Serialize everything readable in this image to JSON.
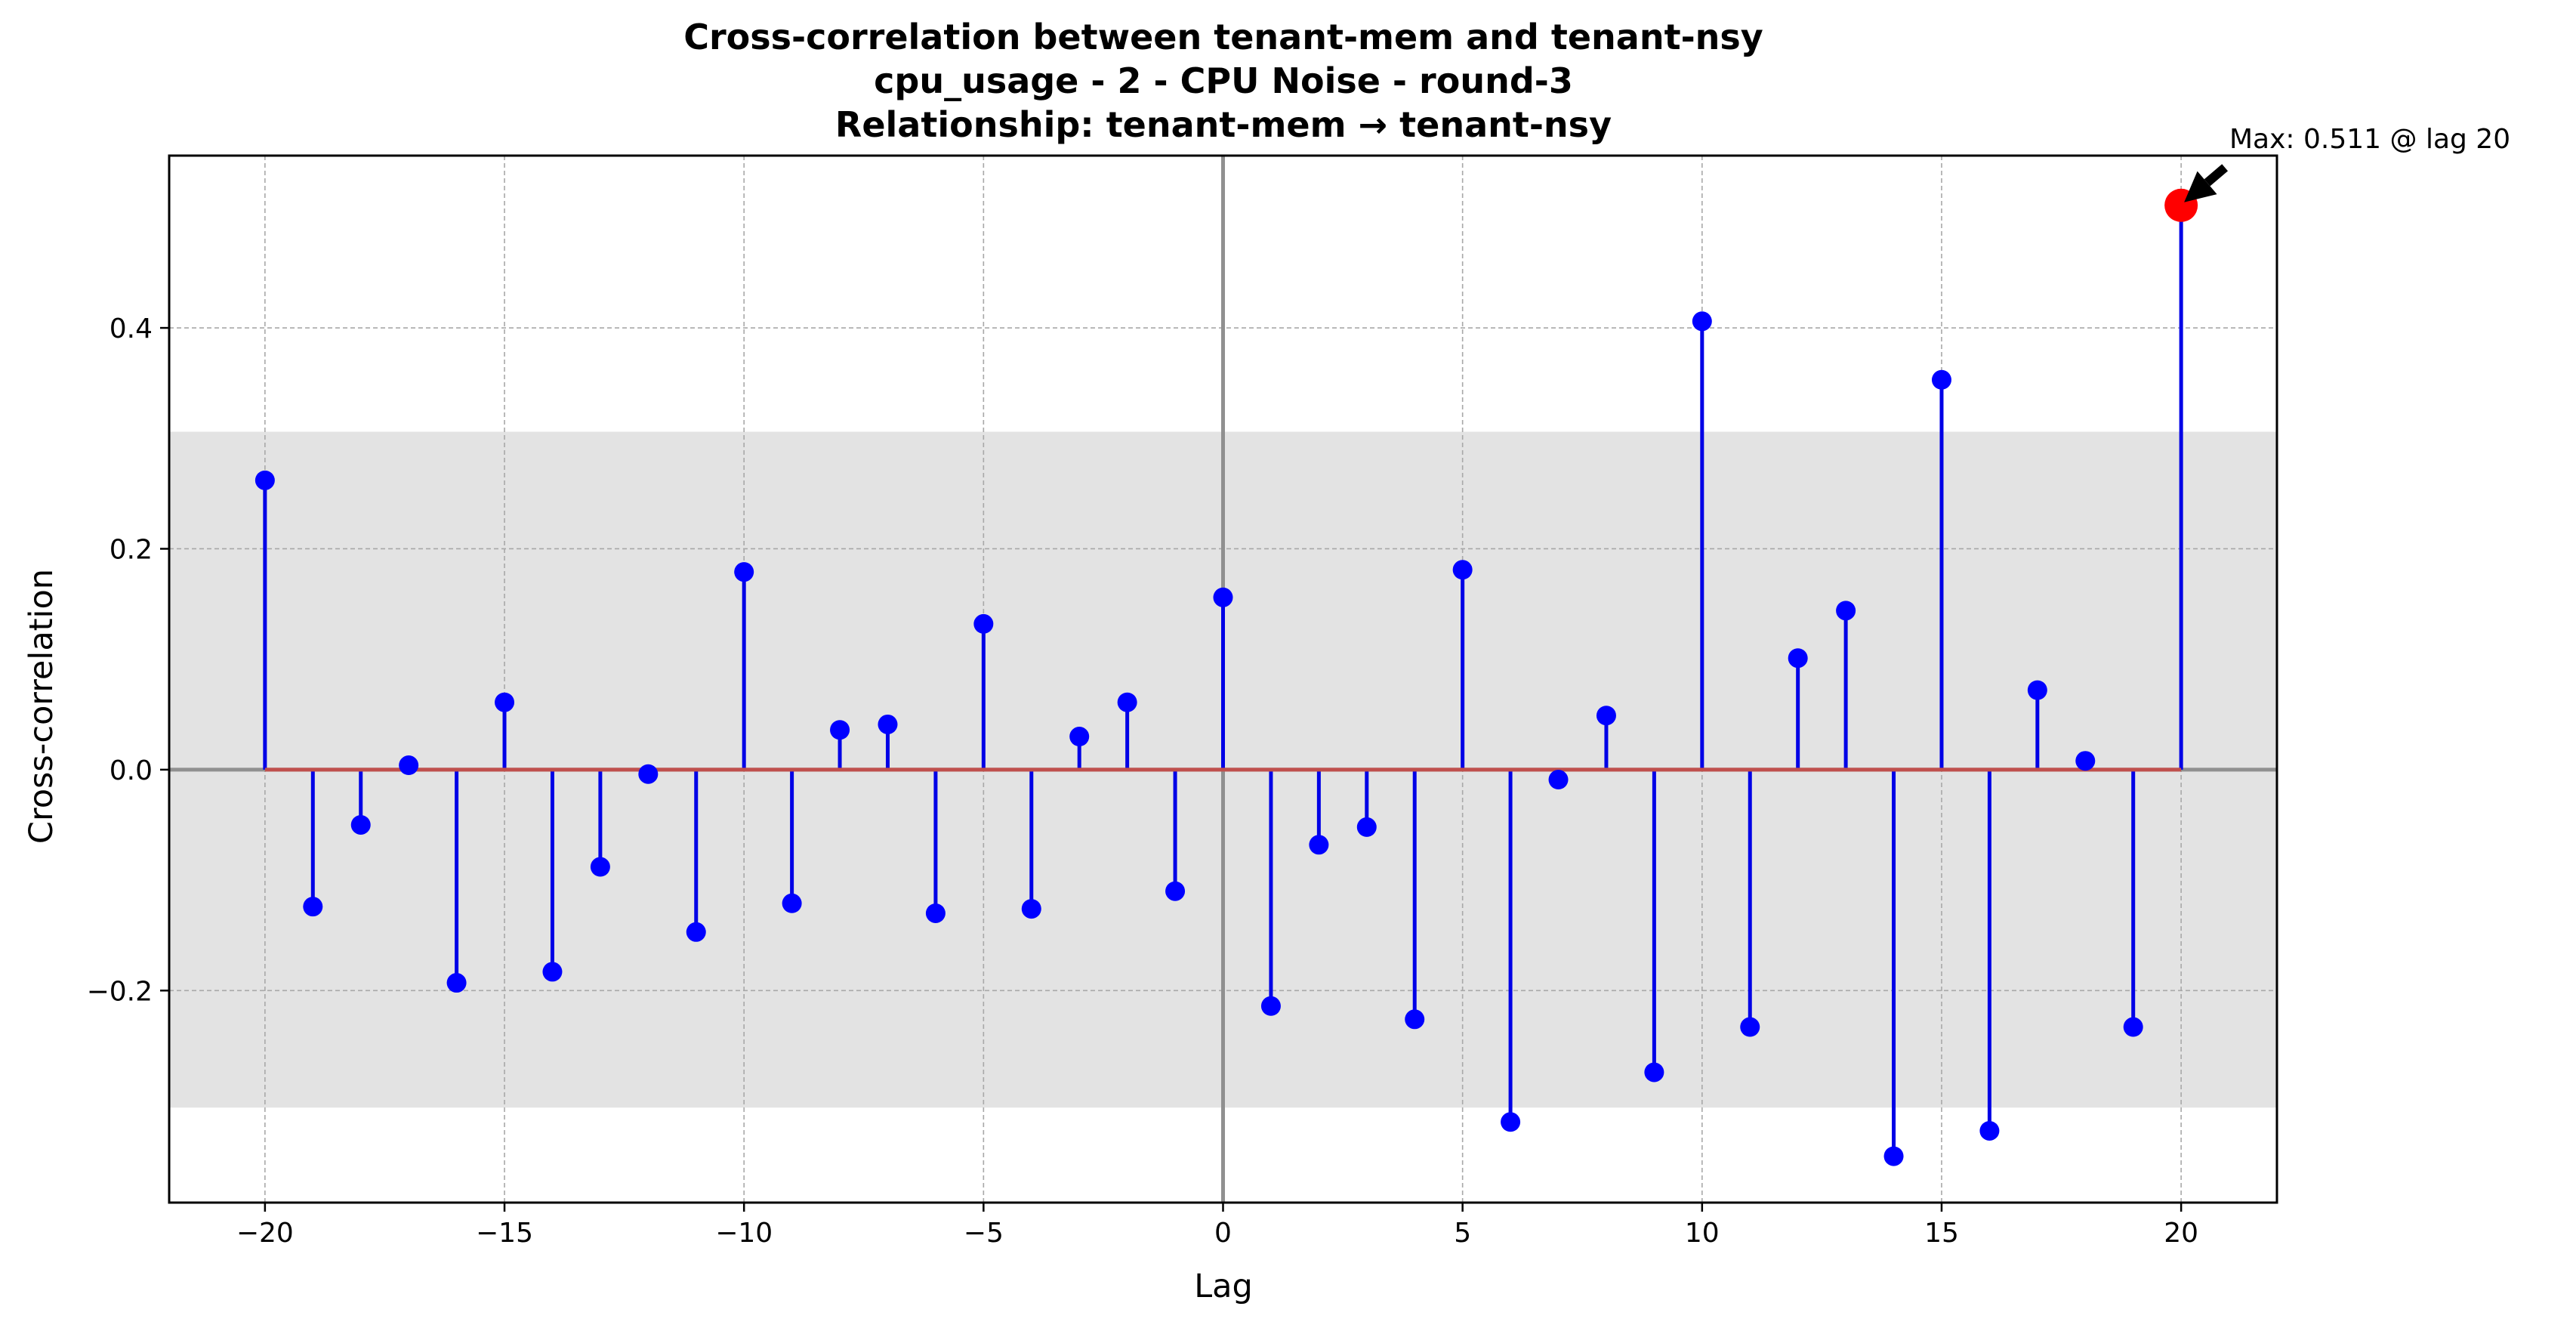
{
  "chart_data": {
    "type": "stem",
    "title_lines": [
      "Cross-correlation between tenant-mem and tenant-nsy",
      "cpu_usage - 2 - CPU Noise - round-3",
      "Relationship: tenant-mem → tenant-nsy"
    ],
    "xlabel": "Lag",
    "ylabel": "Cross-correlation",
    "xlim": [
      -22,
      22
    ],
    "ylim": [
      -0.392,
      0.556
    ],
    "x_ticks": [
      -20,
      -15,
      -10,
      -5,
      0,
      5,
      10,
      15,
      20
    ],
    "x_tick_labels": [
      "−20",
      "−15",
      "−10",
      "−5",
      "0",
      "5",
      "10",
      "15",
      "20"
    ],
    "y_ticks": [
      -0.2,
      0.0,
      0.2,
      0.4
    ],
    "y_tick_labels": [
      "−0.2",
      "0.0",
      "0.2",
      "0.4"
    ],
    "grid": true,
    "confidence_band": [
      -0.306,
      0.306
    ],
    "series": [
      {
        "x": [
          -20,
          -19,
          -18,
          -17,
          -16,
          -15,
          -14,
          -13,
          -12,
          -11,
          -10,
          -9,
          -8,
          -7,
          -6,
          -5,
          -4,
          -3,
          -2,
          -1,
          0,
          1,
          2,
          3,
          4,
          5,
          6,
          7,
          8,
          9,
          10,
          11,
          12,
          13,
          14,
          15,
          16,
          17,
          18,
          19,
          20
        ],
        "values": [
          0.262,
          -0.124,
          -0.05,
          0.004,
          -0.193,
          0.061,
          -0.183,
          -0.088,
          -0.004,
          -0.147,
          0.179,
          -0.121,
          0.036,
          0.041,
          -0.13,
          0.132,
          -0.126,
          0.03,
          0.061,
          -0.11,
          0.156,
          -0.214,
          -0.068,
          -0.052,
          -0.226,
          0.181,
          -0.319,
          -0.009,
          0.049,
          -0.274,
          0.406,
          -0.233,
          0.101,
          0.144,
          -0.35,
          0.353,
          -0.327,
          0.072,
          0.008,
          -0.233,
          0.511
        ]
      }
    ],
    "max_point": {
      "lag": 20,
      "value": 0.511
    },
    "annotation": "Max: 0.511 @ lag 20",
    "colors": {
      "stem": "#0000e6",
      "marker": "#0000ff",
      "baseline": "#c0504d",
      "max_marker": "#ff0000",
      "band": "#e3e3e3",
      "grid": "#a8a8a8",
      "zero_lines": "#909090"
    }
  }
}
